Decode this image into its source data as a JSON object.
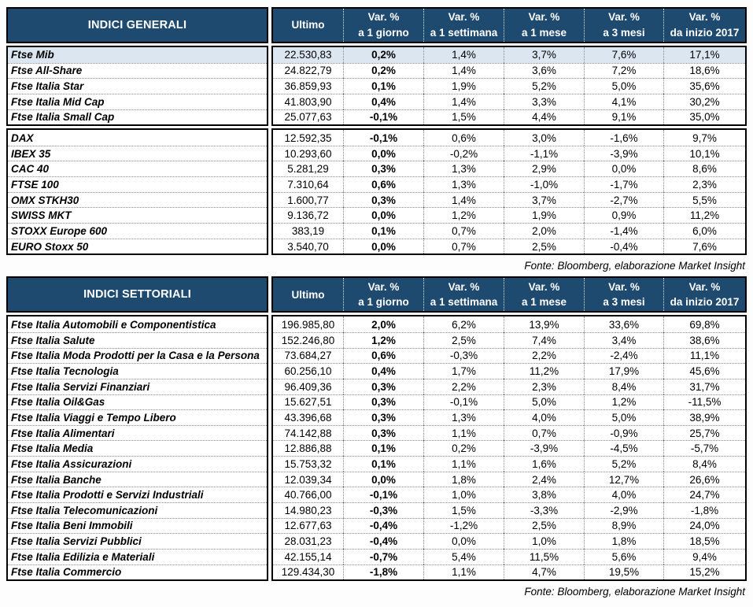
{
  "colors": {
    "header_bg": "#1f4a70",
    "header_text": "#ffffff",
    "highlight_row": "#dce6f1",
    "border": "#000000"
  },
  "columns": [
    {
      "line1": "Ultimo",
      "line2": ""
    },
    {
      "line1": "Var. %",
      "line2": "a 1 giorno"
    },
    {
      "line1": "Var. %",
      "line2": "a 1 settimana"
    },
    {
      "line1": "Var. %",
      "line2": "a 1 mese"
    },
    {
      "line1": "Var. %",
      "line2": "a 3 mesi"
    },
    {
      "line1": "Var. %",
      "line2": "da inizio 2017"
    }
  ],
  "tables": [
    {
      "id": "indici-generali",
      "title": "INDICI GENERALI",
      "footer": "Fonte: Bloomberg, elaborazione Market Insight",
      "groups": [
        {
          "rows": [
            {
              "name": "Ftse Mib",
              "highlight": true,
              "values": [
                "22.530,83",
                "0,2%",
                "1,4%",
                "3,7%",
                "7,6%",
                "17,1%"
              ]
            },
            {
              "name": "Ftse All-Share",
              "highlight": false,
              "values": [
                "24.822,79",
                "0,2%",
                "1,4%",
                "3,6%",
                "7,2%",
                "18,6%"
              ]
            },
            {
              "name": "Ftse Italia Star",
              "highlight": false,
              "values": [
                "36.859,93",
                "0,1%",
                "1,9%",
                "5,2%",
                "5,0%",
                "35,6%"
              ]
            },
            {
              "name": "Ftse Italia Mid Cap",
              "highlight": false,
              "values": [
                "41.803,90",
                "0,4%",
                "1,4%",
                "3,3%",
                "4,1%",
                "30,2%"
              ]
            },
            {
              "name": "Ftse Italia Small Cap",
              "highlight": false,
              "values": [
                "25.077,63",
                "-0,1%",
                "1,5%",
                "4,4%",
                "9,1%",
                "35,0%"
              ]
            }
          ]
        },
        {
          "rows": [
            {
              "name": "DAX",
              "highlight": false,
              "values": [
                "12.592,35",
                "-0,1%",
                "0,6%",
                "3,0%",
                "-1,6%",
                "9,7%"
              ]
            },
            {
              "name": "IBEX 35",
              "highlight": false,
              "values": [
                "10.293,60",
                "0,0%",
                "-0,2%",
                "-1,1%",
                "-3,9%",
                "10,1%"
              ]
            },
            {
              "name": "CAC 40",
              "highlight": false,
              "values": [
                "5.281,29",
                "0,3%",
                "1,3%",
                "2,9%",
                "0,0%",
                "8,6%"
              ]
            },
            {
              "name": "FTSE 100",
              "highlight": false,
              "values": [
                "7.310,64",
                "0,6%",
                "1,3%",
                "-1,0%",
                "-1,7%",
                "2,3%"
              ]
            },
            {
              "name": "OMX STKH30",
              "highlight": false,
              "values": [
                "1.600,77",
                "0,3%",
                "1,4%",
                "3,7%",
                "-2,7%",
                "5,5%"
              ]
            },
            {
              "name": "SWISS MKT",
              "highlight": false,
              "values": [
                "9.136,72",
                "0,0%",
                "1,2%",
                "1,9%",
                "0,9%",
                "11,2%"
              ]
            },
            {
              "name": "STOXX Europe 600",
              "highlight": false,
              "values": [
                "383,19",
                "0,1%",
                "0,7%",
                "2,0%",
                "-1,4%",
                "6,0%"
              ]
            },
            {
              "name": "EURO Stoxx 50",
              "highlight": false,
              "values": [
                "3.540,70",
                "0,0%",
                "0,7%",
                "2,5%",
                "-0,4%",
                "7,6%"
              ]
            }
          ]
        }
      ]
    },
    {
      "id": "indici-settoriali",
      "title": "INDICI SETTORIALI",
      "footer": "Fonte: Bloomberg, elaborazione Market Insight",
      "groups": [
        {
          "rows": [
            {
              "name": "Ftse Italia Automobili e Componentistica",
              "highlight": false,
              "values": [
                "196.985,80",
                "2,0%",
                "6,2%",
                "13,9%",
                "33,6%",
                "69,8%"
              ]
            },
            {
              "name": "Ftse Italia Salute",
              "highlight": false,
              "values": [
                "152.246,80",
                "1,2%",
                "2,5%",
                "7,4%",
                "3,4%",
                "38,6%"
              ]
            },
            {
              "name": "Ftse Italia Moda Prodotti per la Casa e la Persona",
              "highlight": false,
              "values": [
                "73.684,27",
                "0,6%",
                "-0,3%",
                "2,2%",
                "-2,4%",
                "11,1%"
              ]
            },
            {
              "name": "Ftse Italia Tecnologia",
              "highlight": false,
              "values": [
                "60.256,10",
                "0,4%",
                "1,7%",
                "11,2%",
                "17,9%",
                "45,6%"
              ]
            },
            {
              "name": "Ftse Italia Servizi Finanziari",
              "highlight": false,
              "values": [
                "96.409,36",
                "0,3%",
                "2,2%",
                "2,3%",
                "8,4%",
                "31,7%"
              ]
            },
            {
              "name": "Ftse Italia Oil&Gas",
              "highlight": false,
              "values": [
                "15.627,51",
                "0,3%",
                "-0,1%",
                "5,0%",
                "1,2%",
                "-11,5%"
              ]
            },
            {
              "name": "Ftse Italia Viaggi e Tempo Libero",
              "highlight": false,
              "values": [
                "43.396,68",
                "0,3%",
                "1,3%",
                "4,0%",
                "5,0%",
                "38,9%"
              ]
            },
            {
              "name": "Ftse Italia Alimentari",
              "highlight": false,
              "values": [
                "74.142,88",
                "0,3%",
                "1,1%",
                "0,7%",
                "-0,9%",
                "25,7%"
              ]
            },
            {
              "name": "Ftse Italia Media",
              "highlight": false,
              "values": [
                "12.886,88",
                "0,1%",
                "0,2%",
                "-3,9%",
                "-4,5%",
                "-5,7%"
              ]
            },
            {
              "name": "Ftse Italia Assicurazioni",
              "highlight": false,
              "values": [
                "15.753,32",
                "0,1%",
                "1,1%",
                "1,6%",
                "5,2%",
                "8,4%"
              ]
            },
            {
              "name": "Ftse Italia Banche",
              "highlight": false,
              "values": [
                "12.039,34",
                "0,0%",
                "1,8%",
                "2,4%",
                "12,7%",
                "26,6%"
              ]
            },
            {
              "name": "Ftse Italia Prodotti e Servizi Industriali",
              "highlight": false,
              "values": [
                "40.766,00",
                "-0,1%",
                "1,0%",
                "3,8%",
                "4,0%",
                "24,7%"
              ]
            },
            {
              "name": "Ftse Italia Telecomunicazioni",
              "highlight": false,
              "values": [
                "14.980,23",
                "-0,3%",
                "1,5%",
                "-3,3%",
                "-2,9%",
                "-1,8%"
              ]
            },
            {
              "name": "Ftse Italia Beni Immobili",
              "highlight": false,
              "values": [
                "12.677,63",
                "-0,4%",
                "-1,2%",
                "2,5%",
                "8,9%",
                "24,0%"
              ]
            },
            {
              "name": "Ftse Italia Servizi Pubblici",
              "highlight": false,
              "values": [
                "28.031,23",
                "-0,4%",
                "0,0%",
                "1,0%",
                "1,8%",
                "18,5%"
              ]
            },
            {
              "name": "Ftse Italia Edilizia e Materiali",
              "highlight": false,
              "values": [
                "42.155,14",
                "-0,7%",
                "5,4%",
                "11,5%",
                "5,6%",
                "9,4%"
              ]
            },
            {
              "name": "Ftse Italia Commercio",
              "highlight": false,
              "values": [
                "129.434,30",
                "-1,8%",
                "1,1%",
                "4,7%",
                "19,5%",
                "15,2%"
              ]
            }
          ]
        }
      ]
    }
  ]
}
